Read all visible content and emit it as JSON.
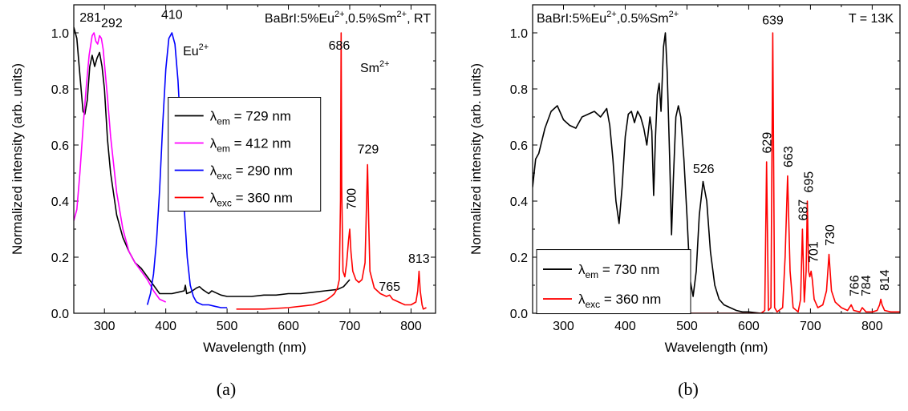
{
  "chart_data": [
    {
      "type": "line",
      "panel_label": "(a)",
      "title": "BaBrI:5%Eu²⁺,0.5%Sm²⁺, RT",
      "xlabel": "Wavelength (nm)",
      "ylabel": "Normalized intensity (arb. units)",
      "xlim": [
        250,
        840
      ],
      "ylim": [
        0,
        1.1
      ],
      "xticks": [
        300,
        400,
        500,
        600,
        700,
        800
      ],
      "yticks": [
        0.0,
        0.2,
        0.4,
        0.6,
        0.8,
        1.0
      ],
      "legend_position": "center-right",
      "series": [
        {
          "name": "λem = 729 nm",
          "legend_main": "λ",
          "legend_sub": "em",
          "legend_rest": " = 729 nm",
          "color": "#000000",
          "x": [
            250,
            255,
            260,
            265,
            268,
            272,
            276,
            280,
            284,
            288,
            292,
            296,
            300,
            305,
            310,
            320,
            330,
            340,
            350,
            360,
            370,
            380,
            390,
            400,
            410,
            420,
            430,
            432,
            434,
            440,
            450,
            455,
            460,
            470,
            475,
            480,
            490,
            500,
            520,
            540,
            560,
            580,
            600,
            620,
            640,
            660,
            680,
            690,
            700
          ],
          "y": [
            1.02,
            0.98,
            0.85,
            0.72,
            0.71,
            0.76,
            0.88,
            0.92,
            0.88,
            0.91,
            0.93,
            0.88,
            0.8,
            0.62,
            0.5,
            0.35,
            0.27,
            0.22,
            0.18,
            0.16,
            0.13,
            0.1,
            0.07,
            0.07,
            0.07,
            0.075,
            0.08,
            0.1,
            0.07,
            0.075,
            0.09,
            0.095,
            0.085,
            0.07,
            0.08,
            0.075,
            0.065,
            0.06,
            0.06,
            0.06,
            0.065,
            0.065,
            0.07,
            0.07,
            0.075,
            0.08,
            0.085,
            0.095,
            0.12
          ]
        },
        {
          "name": "λem = 412 nm",
          "legend_main": "λ",
          "legend_sub": "em",
          "legend_rest": " = 412 nm",
          "color": "#ff00ff",
          "x": [
            250,
            255,
            260,
            265,
            270,
            275,
            280,
            283,
            286,
            289,
            292,
            295,
            298,
            300,
            305,
            310,
            320,
            330,
            340,
            350,
            360,
            370,
            380,
            390,
            400
          ],
          "y": [
            0.33,
            0.37,
            0.5,
            0.66,
            0.8,
            0.92,
            0.99,
            1.0,
            0.97,
            0.96,
            0.99,
            0.98,
            0.94,
            0.89,
            0.77,
            0.63,
            0.43,
            0.3,
            0.22,
            0.18,
            0.15,
            0.12,
            0.08,
            0.05,
            0.04
          ]
        },
        {
          "name": "λexc = 290 nm",
          "legend_main": "λ",
          "legend_sub": "exc",
          "legend_rest": " = 290 nm",
          "color": "#0000ff",
          "x": [
            370,
            375,
            380,
            385,
            390,
            395,
            400,
            405,
            410,
            415,
            420,
            425,
            430,
            435,
            440,
            445,
            450,
            455,
            460,
            470,
            480,
            490,
            500
          ],
          "y": [
            0.03,
            0.07,
            0.14,
            0.26,
            0.44,
            0.67,
            0.87,
            0.98,
            1.0,
            0.96,
            0.83,
            0.62,
            0.38,
            0.2,
            0.1,
            0.06,
            0.04,
            0.035,
            0.03,
            0.03,
            0.025,
            0.02,
            0.02
          ]
        },
        {
          "name": "λexc = 360 nm",
          "legend_main": "λ",
          "legend_sub": "exc",
          "legend_rest": " = 360 nm",
          "color": "#ff0000",
          "x": [
            515,
            530,
            560,
            600,
            640,
            660,
            670,
            675,
            680,
            683,
            685,
            686,
            687,
            689,
            692,
            695,
            698,
            700,
            702,
            705,
            710,
            715,
            720,
            725,
            727,
            729,
            731,
            733,
            740,
            750,
            760,
            765,
            770,
            780,
            790,
            800,
            808,
            811,
            813,
            815,
            818,
            820,
            825
          ],
          "y": [
            0.015,
            0.015,
            0.015,
            0.02,
            0.03,
            0.045,
            0.06,
            0.07,
            0.09,
            0.12,
            0.4,
            1.0,
            0.45,
            0.15,
            0.13,
            0.18,
            0.26,
            0.3,
            0.22,
            0.15,
            0.12,
            0.11,
            0.12,
            0.18,
            0.35,
            0.53,
            0.32,
            0.15,
            0.09,
            0.07,
            0.06,
            0.065,
            0.05,
            0.04,
            0.03,
            0.03,
            0.04,
            0.08,
            0.15,
            0.08,
            0.03,
            0.015,
            0.02
          ]
        }
      ],
      "annotations": [
        {
          "text": "281",
          "x": 277,
          "y": 1.04
        },
        {
          "text": "292",
          "x": 312,
          "y": 1.02
        },
        {
          "text": "410",
          "x": 410,
          "y": 1.05
        },
        {
          "text": "686",
          "x": 683,
          "y": 0.94
        },
        {
          "text": "700",
          "x": 702,
          "y": 0.37,
          "rotate": -90
        },
        {
          "text": "729",
          "x": 730,
          "y": 0.57
        },
        {
          "text": "765",
          "x": 765,
          "y": 0.08
        },
        {
          "text": "813",
          "x": 813,
          "y": 0.18
        }
      ],
      "label_eu": {
        "base": "Eu",
        "sup": "2+",
        "x": 428,
        "y": 0.92
      },
      "label_sm": {
        "base": "Sm",
        "sup": "2+",
        "x": 717,
        "y": 0.86
      },
      "title_parts": {
        "base1": "BaBrI:5%Eu",
        "sup1": "2+",
        "base2": ",0.5%Sm",
        "sup2": "2+",
        "tail": ", RT"
      }
    },
    {
      "type": "line",
      "panel_label": "(b)",
      "title": "BaBrI:5%Eu²⁺,0.5%Sm²⁺",
      "temperature_label": "T = 13K",
      "xlabel": "Wavelength (nm)",
      "ylabel": "Normalized intensity (arb. units)",
      "xlim": [
        250,
        845
      ],
      "ylim": [
        0,
        1.1
      ],
      "xticks": [
        300,
        400,
        500,
        600,
        700,
        800
      ],
      "yticks": [
        0.0,
        0.2,
        0.4,
        0.6,
        0.8,
        1.0
      ],
      "legend_position": "lower-left",
      "series": [
        {
          "name": "λem = 730 nm",
          "legend_main": "λ",
          "legend_sub": "em",
          "legend_rest": " = 730 nm",
          "color": "#000000",
          "x": [
            250,
            255,
            260,
            270,
            280,
            290,
            300,
            310,
            320,
            330,
            340,
            350,
            360,
            370,
            375,
            380,
            385,
            390,
            395,
            400,
            405,
            410,
            415,
            420,
            425,
            430,
            435,
            440,
            443,
            446,
            449,
            452,
            455,
            458,
            462,
            465,
            468,
            472,
            475,
            478,
            482,
            486,
            490,
            495,
            500,
            505,
            510,
            515,
            520,
            526,
            532,
            538,
            545,
            552,
            560,
            570,
            580,
            590,
            600,
            620,
            640
          ],
          "y": [
            0.45,
            0.55,
            0.57,
            0.66,
            0.72,
            0.74,
            0.69,
            0.67,
            0.66,
            0.7,
            0.71,
            0.72,
            0.7,
            0.73,
            0.67,
            0.55,
            0.4,
            0.32,
            0.45,
            0.63,
            0.71,
            0.72,
            0.68,
            0.72,
            0.7,
            0.66,
            0.6,
            0.7,
            0.65,
            0.42,
            0.63,
            0.78,
            0.82,
            0.72,
            0.95,
            1.0,
            0.86,
            0.55,
            0.28,
            0.48,
            0.7,
            0.74,
            0.7,
            0.55,
            0.35,
            0.12,
            0.06,
            0.15,
            0.35,
            0.47,
            0.4,
            0.22,
            0.1,
            0.05,
            0.03,
            0.02,
            0.01,
            0.005,
            0.005,
            0.0,
            0.0
          ]
        },
        {
          "name": "λexc = 360 nm",
          "legend_main": "λ",
          "legend_sub": "exc",
          "legend_rest": " = 360 nm",
          "color": "#ff0000",
          "x": [
            450,
            500,
            550,
            600,
            620,
            626,
            629,
            632,
            636,
            639,
            642,
            646,
            655,
            659,
            663,
            667,
            672,
            680,
            684,
            687,
            690,
            693,
            695,
            697,
            699,
            701,
            703,
            706,
            712,
            720,
            726,
            730,
            734,
            740,
            750,
            760,
            766,
            770,
            780,
            784,
            790,
            800,
            808,
            812,
            814,
            816,
            820,
            830,
            840,
            845
          ],
          "y": [
            0.0,
            0.0,
            0.0,
            0.0,
            0.0,
            0.01,
            0.54,
            0.01,
            0.02,
            1.0,
            0.02,
            0.005,
            0.02,
            0.2,
            0.49,
            0.15,
            0.02,
            0.005,
            0.05,
            0.3,
            0.04,
            0.15,
            0.4,
            0.15,
            0.13,
            0.15,
            0.12,
            0.05,
            0.02,
            0.03,
            0.08,
            0.21,
            0.08,
            0.04,
            0.02,
            0.01,
            0.03,
            0.01,
            0.005,
            0.02,
            0.005,
            0.005,
            0.01,
            0.03,
            0.05,
            0.03,
            0.01,
            0.005,
            0.005,
            0.005
          ]
        }
      ],
      "annotations": [
        {
          "text": "526",
          "x": 527,
          "y": 0.5
        },
        {
          "text": "629",
          "x": 629,
          "y": 0.57,
          "rotate": -90
        },
        {
          "text": "639",
          "x": 639,
          "y": 1.03
        },
        {
          "text": "663",
          "x": 663,
          "y": 0.52,
          "rotate": -90
        },
        {
          "text": "687",
          "x": 687,
          "y": 0.33,
          "rotate": -90
        },
        {
          "text": "695",
          "x": 696,
          "y": 0.43,
          "rotate": -90
        },
        {
          "text": "701",
          "x": 704,
          "y": 0.18,
          "rotate": -90
        },
        {
          "text": "730",
          "x": 731,
          "y": 0.24,
          "rotate": -90
        },
        {
          "text": "766",
          "x": 770,
          "y": 0.06,
          "rotate": -90
        },
        {
          "text": "784",
          "x": 789,
          "y": 0.06,
          "rotate": -90
        },
        {
          "text": "814",
          "x": 819,
          "y": 0.08,
          "rotate": -90
        }
      ],
      "title_parts": {
        "base1": "BaBrI:5%Eu",
        "sup1": "2+",
        "base2": ",0.5%Sm",
        "sup2": "2+",
        "tail": ""
      }
    }
  ]
}
